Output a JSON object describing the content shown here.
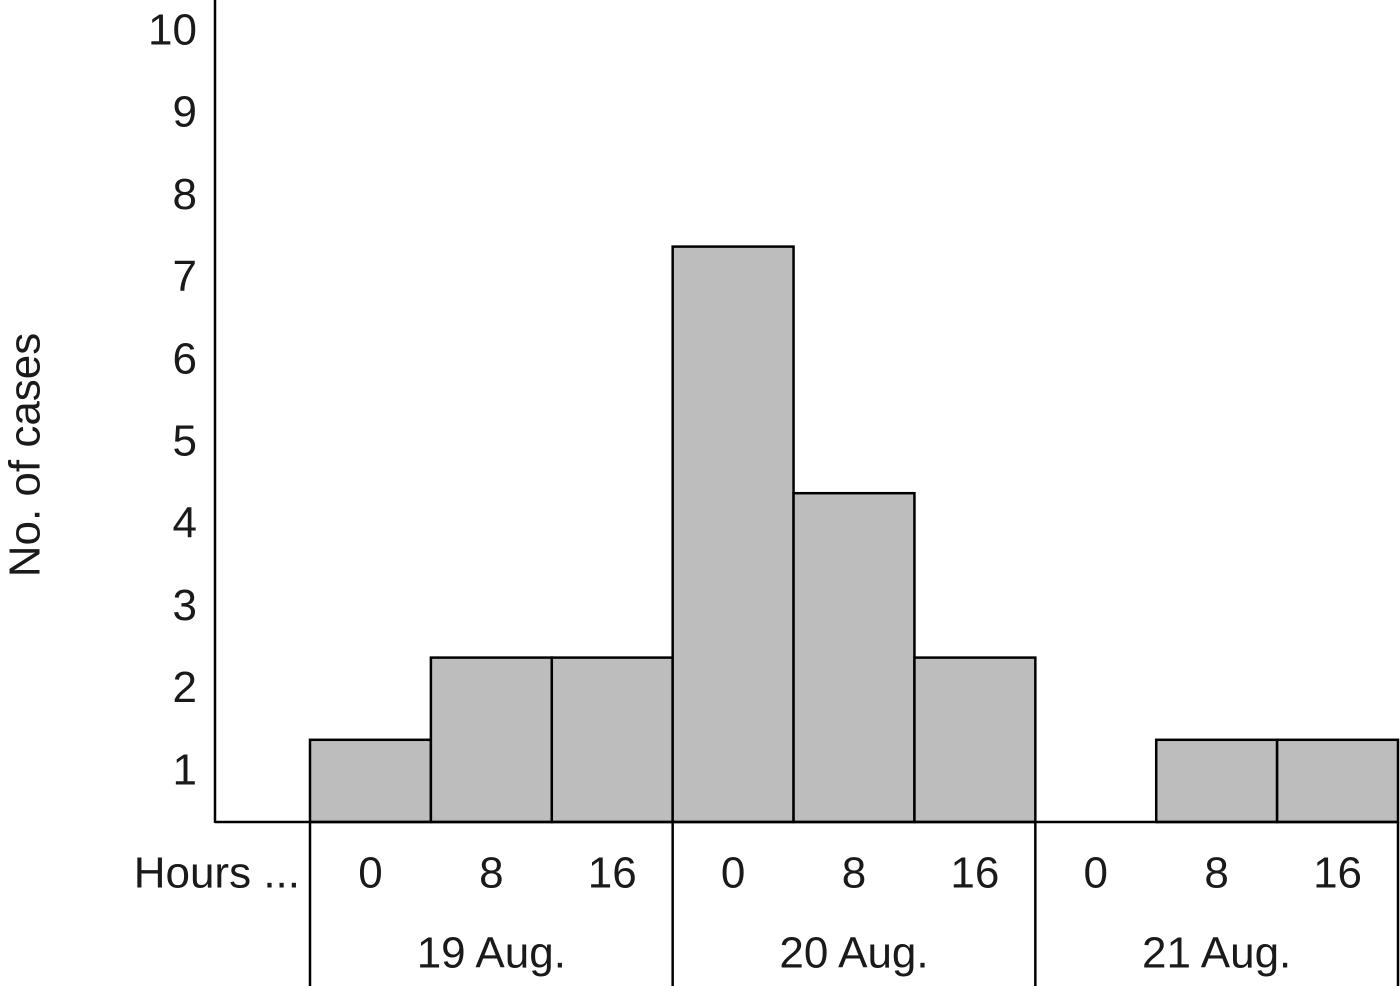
{
  "chart_data": {
    "type": "bar",
    "y_label": "No. of cases",
    "x_label": "Hours ...",
    "categories": [
      "0",
      "8",
      "16",
      "0",
      "8",
      "16",
      "0",
      "8",
      "16"
    ],
    "groups": [
      "19 Aug.",
      "20 Aug.",
      "21 Aug."
    ],
    "values": [
      1,
      2,
      2,
      7,
      4,
      2,
      0,
      1,
      1
    ],
    "color": "#bdbdbd",
    "ylim": [
      0,
      10
    ],
    "yticks": [
      1,
      2,
      3,
      4,
      5,
      6,
      7,
      8,
      9,
      10
    ],
    "grid": false
  }
}
